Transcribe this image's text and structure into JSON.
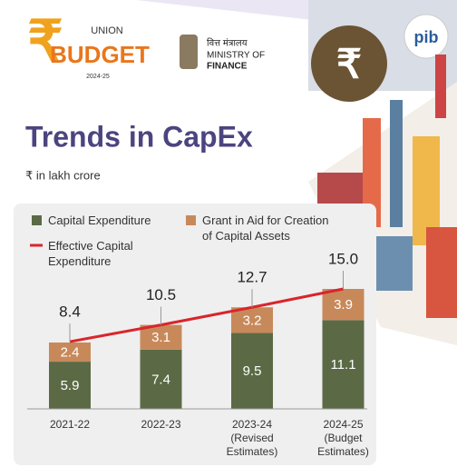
{
  "header": {
    "union": "UNION",
    "budget": "BUDGET",
    "year": "2024-25",
    "ministry_hindi": "वित्त मंत्रालय",
    "ministry_line1": "MINISTRY OF",
    "ministry_line2": "FINANCE",
    "logo": "pib"
  },
  "chart_data": {
    "type": "bar",
    "stacked": true,
    "title": "Trends in CapEx",
    "subtitle": "₹ in lakh crore",
    "categories": [
      "2021-22",
      "2022-23",
      "2023-24 (Revised Estimates)",
      "2024-25 (Budget Estimates)"
    ],
    "series": [
      {
        "name": "Capital Expenditure",
        "color": "#5b6a45",
        "values": [
          5.9,
          7.4,
          9.5,
          11.1
        ]
      },
      {
        "name": "Grant in Aid for Creation of Capital Assets",
        "color": "#c8895a",
        "values": [
          2.4,
          3.1,
          3.2,
          3.9
        ]
      },
      {
        "name": "Effective Capital Expenditure",
        "type": "line",
        "color": "#d8262b",
        "values": [
          8.4,
          10.5,
          12.7,
          15
        ],
        "value_labels": [
          "8.4",
          "10.5",
          "12.7",
          "15.0"
        ]
      }
    ]
  }
}
